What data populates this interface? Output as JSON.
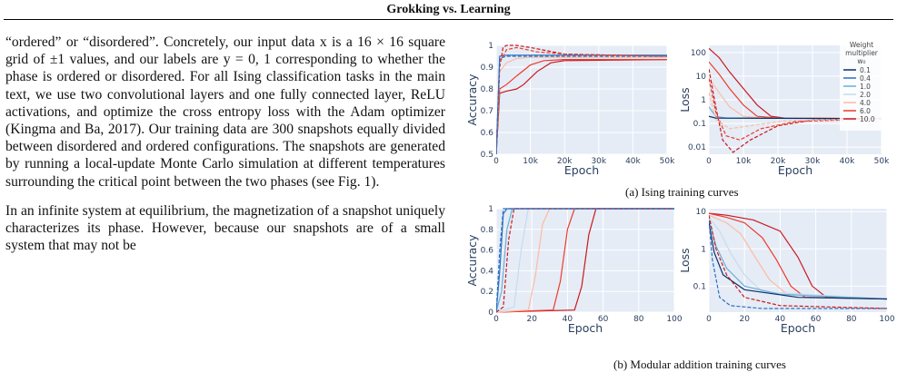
{
  "header": {
    "title": "Grokking vs. Learning"
  },
  "body": {
    "paragraphs": [
      "“ordered” or “disordered”. Concretely, our input data x is a 16 × 16 square grid of ±1 values, and our labels are y = 0, 1 corresponding to whether the phase is ordered or disordered. For all Ising classification tasks in the main text, we use two convolutional layers and one fully connected layer, ReLU activations, and optimize the cross entropy loss with the Adam optimizer (Kingma and Ba, 2017). Our training data are 300 snapshots equally divided between disordered and ordered configurations. The snapshots are generated by running a local-update Monte Carlo simulation at different temperatures surrounding the critical point between the two phases (see Fig. 1).",
      "In an infinite system at equilibrium, the magnetization of a snapshot uniquely characterizes its phase. However, because our snapshots are of a small system that may not be"
    ]
  },
  "figure": {
    "caption_a": "(a) Ising training curves",
    "caption_b": "(b) Modular addition training curves",
    "legend": {
      "title_line1": "Weight",
      "title_line2": "multiplier",
      "title_line3": "w₀",
      "entries": [
        "0.1",
        "0.4",
        "1.0",
        "2.0",
        "4.0",
        "6.0",
        "10.0"
      ],
      "colors": [
        "#08306b",
        "#2b6fbf",
        "#6baed6",
        "#c6dbef",
        "#fcbba1",
        "#ef3b2c",
        "#cb181d"
      ]
    }
  },
  "chart_data": [
    {
      "type": "line",
      "panel": "a-left",
      "xlabel": "Epoch",
      "ylabel": "Accuracy",
      "x_ticks": [
        "0",
        "10k",
        "20k",
        "30k",
        "40k",
        "50k"
      ],
      "y_ticks": [
        "0.5",
        "0.6",
        "0.7",
        "0.8",
        "0.9",
        "1"
      ],
      "xlim": [
        0,
        50000
      ],
      "ylim": [
        0.5,
        1.0
      ],
      "series": [
        {
          "style": "solid",
          "color": "#cb181d",
          "x": [
            0,
            1000,
            3000,
            6000,
            8000,
            12000,
            16000,
            20000,
            50000
          ],
          "y": [
            0.5,
            0.78,
            0.79,
            0.8,
            0.82,
            0.88,
            0.92,
            0.93,
            0.935
          ]
        },
        {
          "style": "solid",
          "color": "#ef3b2c",
          "x": [
            0,
            1000,
            3000,
            6000,
            10000,
            14000,
            20000,
            50000
          ],
          "y": [
            0.5,
            0.8,
            0.82,
            0.86,
            0.91,
            0.93,
            0.935,
            0.935
          ]
        },
        {
          "style": "solid",
          "color": "#fcbba1",
          "x": [
            0,
            1000,
            3000,
            6000,
            10000,
            50000
          ],
          "y": [
            0.5,
            0.88,
            0.92,
            0.94,
            0.945,
            0.945
          ]
        },
        {
          "style": "solid",
          "color": "#2b6fbf",
          "x": [
            0,
            1000,
            3000,
            6000,
            50000
          ],
          "y": [
            0.5,
            0.95,
            0.955,
            0.955,
            0.955
          ]
        },
        {
          "style": "dashed",
          "color": "#cb181d",
          "x": [
            0,
            1000,
            2000,
            3000,
            6000,
            10000,
            20000,
            50000
          ],
          "y": [
            0.5,
            0.9,
            0.99,
            1.0,
            1.0,
            0.99,
            0.96,
            0.95
          ]
        },
        {
          "style": "dashed",
          "color": "#ef3b2c",
          "x": [
            0,
            1000,
            3000,
            6000,
            12000,
            20000,
            50000
          ],
          "y": [
            0.5,
            0.92,
            0.98,
            0.99,
            0.97,
            0.96,
            0.95
          ]
        },
        {
          "style": "dashed",
          "color": "#2b6fbf",
          "x": [
            0,
            1000,
            3000,
            50000
          ],
          "y": [
            0.5,
            0.94,
            0.95,
            0.95
          ]
        }
      ]
    },
    {
      "type": "line",
      "panel": "a-right",
      "xlabel": "Epoch",
      "ylabel": "Loss",
      "x_ticks": [
        "0",
        "10k",
        "20k",
        "30k",
        "40k",
        "50k"
      ],
      "y_ticks": [
        "0.01",
        "0.1",
        "1",
        "10",
        "100"
      ],
      "xlim": [
        0,
        50000
      ],
      "ylim": [
        0.005,
        200
      ],
      "yscale": "log",
      "series": [
        {
          "style": "solid",
          "color": "#cb181d",
          "x": [
            0,
            3000,
            6000,
            10000,
            14000,
            18000,
            22000,
            50000
          ],
          "y": [
            150,
            60,
            15,
            3,
            0.6,
            0.2,
            0.17,
            0.16
          ]
        },
        {
          "style": "solid",
          "color": "#ef3b2c",
          "x": [
            0,
            3000,
            6000,
            10000,
            14000,
            20000,
            50000
          ],
          "y": [
            40,
            12,
            3,
            0.6,
            0.2,
            0.17,
            0.16
          ]
        },
        {
          "style": "solid",
          "color": "#fcbba1",
          "x": [
            0,
            3000,
            6000,
            10000,
            16000,
            50000
          ],
          "y": [
            8,
            2,
            0.5,
            0.2,
            0.17,
            0.16
          ]
        },
        {
          "style": "solid",
          "color": "#6baed6",
          "x": [
            0,
            2000,
            5000,
            50000
          ],
          "y": [
            0.5,
            0.2,
            0.17,
            0.16
          ]
        },
        {
          "style": "solid",
          "color": "#08306b",
          "x": [
            0,
            2000,
            50000
          ],
          "y": [
            0.2,
            0.17,
            0.16
          ]
        },
        {
          "style": "dashed",
          "color": "#cb181d",
          "x": [
            0,
            2000,
            4000,
            7000,
            12000,
            20000,
            30000,
            50000
          ],
          "y": [
            20,
            0.5,
            0.02,
            0.006,
            0.02,
            0.08,
            0.14,
            0.16
          ]
        },
        {
          "style": "dashed",
          "color": "#ef3b2c",
          "x": [
            0,
            2000,
            5000,
            9000,
            15000,
            25000,
            50000
          ],
          "y": [
            8,
            0.3,
            0.03,
            0.02,
            0.06,
            0.12,
            0.16
          ]
        },
        {
          "style": "dashed",
          "color": "#fcbba1",
          "x": [
            0,
            2000,
            6000,
            12000,
            22000,
            50000
          ],
          "y": [
            2,
            0.15,
            0.06,
            0.08,
            0.13,
            0.16
          ]
        }
      ]
    },
    {
      "type": "line",
      "panel": "b-left",
      "xlabel": "Epoch",
      "ylabel": "Accuracy",
      "x_ticks": [
        "0",
        "20",
        "40",
        "60",
        "80",
        "100"
      ],
      "y_ticks": [
        "0",
        "0.2",
        "0.4",
        "0.6",
        "0.8",
        "1"
      ],
      "xlim": [
        0,
        100
      ],
      "ylim": [
        0,
        1
      ],
      "series": [
        {
          "style": "solid",
          "color": "#cb181d",
          "x": [
            0,
            44,
            48,
            52,
            56,
            100
          ],
          "y": [
            0,
            0.02,
            0.25,
            0.75,
            1.0,
            1.0
          ]
        },
        {
          "style": "solid",
          "color": "#ef3b2c",
          "x": [
            0,
            32,
            36,
            40,
            44,
            100
          ],
          "y": [
            0,
            0.02,
            0.3,
            0.8,
            1.0,
            1.0
          ]
        },
        {
          "style": "solid",
          "color": "#fcbba1",
          "x": [
            0,
            18,
            22,
            26,
            30,
            100
          ],
          "y": [
            0,
            0.02,
            0.35,
            0.85,
            1.0,
            1.0
          ]
        },
        {
          "style": "solid",
          "color": "#c6dbef",
          "x": [
            0,
            10,
            14,
            18,
            100
          ],
          "y": [
            0,
            0.05,
            0.6,
            1.0,
            1.0
          ]
        },
        {
          "style": "solid",
          "color": "#6baed6",
          "x": [
            0,
            3,
            6,
            9,
            100
          ],
          "y": [
            0,
            0.2,
            0.8,
            1.0,
            1.0
          ]
        },
        {
          "style": "solid",
          "color": "#2b6fbf",
          "x": [
            0,
            2,
            4,
            6,
            100
          ],
          "y": [
            0,
            0.4,
            0.95,
            1.0,
            1.0
          ]
        },
        {
          "style": "dashed",
          "color": "#cb181d",
          "x": [
            0,
            4,
            7,
            10,
            100
          ],
          "y": [
            0,
            0.05,
            0.7,
            1.0,
            1.0
          ]
        },
        {
          "style": "dashed",
          "color": "#2b6fbf",
          "x": [
            0,
            2,
            4,
            100
          ],
          "y": [
            0,
            0.6,
            1.0,
            1.0
          ]
        }
      ]
    },
    {
      "type": "line",
      "panel": "b-right",
      "xlabel": "Epoch",
      "ylabel": "Loss",
      "x_ticks": [
        "0",
        "20",
        "40",
        "60",
        "80",
        "100"
      ],
      "y_ticks": [
        "0.1",
        "1",
        "10"
      ],
      "xlim": [
        0,
        100
      ],
      "ylim": [
        0.02,
        12
      ],
      "yscale": "log",
      "series": [
        {
          "style": "solid",
          "color": "#cb181d",
          "x": [
            0,
            10,
            25,
            40,
            50,
            58,
            66,
            100
          ],
          "y": [
            9,
            8,
            6,
            3,
            0.6,
            0.1,
            0.05,
            0.045
          ]
        },
        {
          "style": "solid",
          "color": "#ef3b2c",
          "x": [
            0,
            10,
            20,
            30,
            38,
            46,
            54,
            100
          ],
          "y": [
            9,
            7,
            5,
            2,
            0.5,
            0.1,
            0.05,
            0.045
          ]
        },
        {
          "style": "solid",
          "color": "#fcbba1",
          "x": [
            0,
            10,
            18,
            26,
            34,
            44,
            100
          ],
          "y": [
            8,
            5,
            2.5,
            0.6,
            0.15,
            0.06,
            0.045
          ]
        },
        {
          "style": "solid",
          "color": "#c6dbef",
          "x": [
            0,
            6,
            12,
            20,
            30,
            100
          ],
          "y": [
            7,
            3,
            0.8,
            0.2,
            0.07,
            0.045
          ]
        },
        {
          "style": "solid",
          "color": "#6baed6",
          "x": [
            0,
            4,
            10,
            20,
            40,
            100
          ],
          "y": [
            6,
            1.2,
            0.3,
            0.1,
            0.06,
            0.045
          ]
        },
        {
          "style": "solid",
          "color": "#08306b",
          "x": [
            0,
            3,
            8,
            20,
            50,
            100
          ],
          "y": [
            5,
            0.8,
            0.2,
            0.08,
            0.05,
            0.045
          ]
        },
        {
          "style": "dashed",
          "color": "#2b6fbf",
          "x": [
            0,
            2,
            6,
            12,
            30,
            100
          ],
          "y": [
            6,
            0.5,
            0.05,
            0.03,
            0.025,
            0.025
          ]
        },
        {
          "style": "dashed",
          "color": "#cb181d",
          "x": [
            0,
            4,
            10,
            20,
            40,
            100
          ],
          "y": [
            8,
            1,
            0.2,
            0.05,
            0.03,
            0.025
          ]
        }
      ]
    }
  ]
}
